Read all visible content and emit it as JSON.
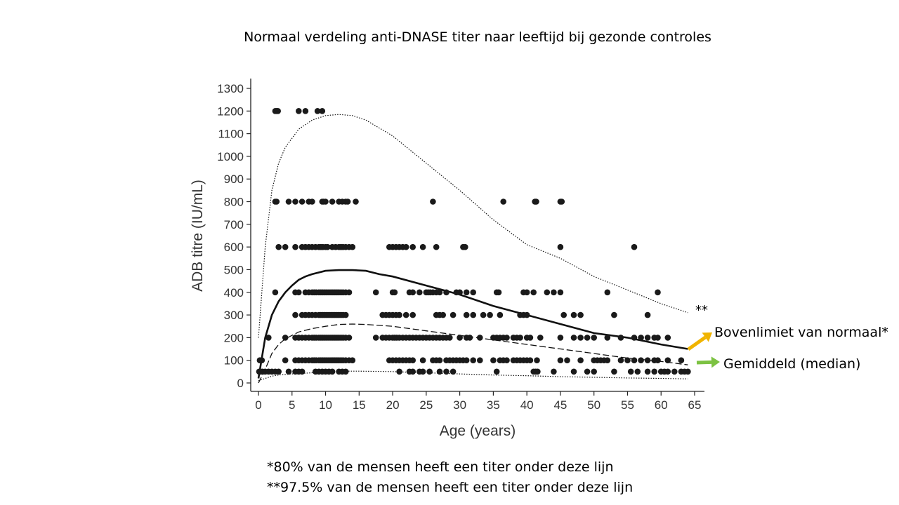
{
  "title": "Normaal verdeling anti-DNASE titer naar leeftijd bij gezonde controles",
  "notes": {
    "p80": "*80% van de mensen heeft een titer onder deze lijn",
    "p975": "**97.5% van de mensen heeft een titer onder deze lijn"
  },
  "labels": {
    "upper": "Bovenlimiet van normaal*",
    "median": "Gemiddeld (median)",
    "stars": "**"
  },
  "colors": {
    "upper_arrow": "#f0b400",
    "median_arrow": "#7cc242",
    "points": "#1a1a1a"
  },
  "chart_data": {
    "type": "scatter",
    "xlabel": "Age (years)",
    "ylabel": "ADB titre (IU/mL)",
    "xlim": [
      0,
      65
    ],
    "ylim": [
      0,
      1300
    ],
    "x_ticks": [
      "0",
      "5",
      "10",
      "15",
      "20",
      "25",
      "30",
      "35",
      "40",
      "45",
      "50",
      "55",
      "60",
      "65"
    ],
    "y_ticks": [
      "0",
      "100",
      "200",
      "300",
      "400",
      "500",
      "600",
      "700",
      "800",
      "900",
      "1000",
      "1100",
      "1200",
      "1300"
    ],
    "grid": false,
    "points": [
      {
        "y": 1200,
        "x": [
          2.5,
          2.7,
          2.9,
          6,
          7,
          8.8,
          9.5
        ]
      },
      {
        "y": 800,
        "x": [
          2.5,
          2.7,
          4.5,
          5.5,
          6.5,
          7.5,
          8,
          9.5,
          9.7,
          10,
          11,
          12,
          12.5,
          13,
          13.3,
          14.5,
          26,
          36.5,
          41.2,
          41.4,
          45,
          45.2
        ]
      },
      {
        "y": 600,
        "x": [
          3,
          4,
          5.5,
          6.5,
          7,
          7.5,
          8,
          8.5,
          9,
          9.3,
          9.6,
          10,
          10.3,
          11,
          11.5,
          12,
          12.3,
          12.6,
          13,
          13.5,
          14,
          19.5,
          20,
          20.5,
          21,
          21.5,
          22,
          23,
          24.5,
          26.5,
          30.5,
          30.8,
          45,
          56
        ]
      },
      {
        "y": 400,
        "x": [
          2.5,
          5.5,
          6,
          7,
          7.5,
          8,
          8.3,
          8.6,
          9,
          9.3,
          9.6,
          9.9,
          10.2,
          10.5,
          10.8,
          11.1,
          11.4,
          11.7,
          12,
          12.3,
          12.6,
          13,
          13.5,
          17.5,
          20,
          20.3,
          22.5,
          23,
          24,
          25,
          25.3,
          25.6,
          26,
          26.5,
          27,
          28,
          29.5,
          30,
          31,
          32,
          35.5,
          35.8,
          39.5,
          40,
          41,
          43,
          44,
          45,
          52,
          59.5
        ]
      },
      {
        "y": 300,
        "x": [
          5.5,
          6.5,
          7,
          7.5,
          8,
          8.5,
          9,
          9.3,
          9.6,
          9.9,
          10.2,
          10.5,
          10.8,
          11.1,
          11.4,
          11.7,
          12,
          12.3,
          12.6,
          13,
          18.5,
          19,
          19.5,
          20,
          20.5,
          21,
          22,
          23,
          26.5,
          27,
          27.5,
          29,
          31,
          32,
          33.5,
          34.5,
          36,
          39,
          39.5,
          40,
          45.5,
          47,
          48,
          53,
          58
        ]
      },
      {
        "y": 200,
        "x": [
          1.5,
          4,
          5.5,
          6,
          6.5,
          7,
          7.5,
          8,
          8.3,
          8.6,
          9,
          9.3,
          9.6,
          9.9,
          10.2,
          10.5,
          10.8,
          11.1,
          11.4,
          11.7,
          12,
          12.3,
          12.6,
          13,
          13.5,
          17.5,
          18.5,
          19,
          19.5,
          20,
          20.3,
          20.6,
          21,
          21.5,
          22,
          22.5,
          23,
          23.5,
          24,
          24.5,
          25,
          25.5,
          26,
          26.5,
          27,
          27.5,
          28,
          28.5,
          30,
          31,
          31.5,
          33,
          35,
          35.5,
          36,
          36.5,
          37,
          38,
          38.5,
          39,
          40,
          40.5,
          42,
          45,
          47,
          48,
          49,
          50,
          52,
          54,
          56,
          57,
          58,
          59,
          59.5,
          61
        ]
      },
      {
        "y": 100,
        "x": [
          0.2,
          0.5,
          4,
          5.5,
          6,
          6.5,
          7,
          7.5,
          8,
          8.3,
          8.6,
          9,
          9.3,
          9.6,
          9.9,
          10.2,
          10.5,
          10.8,
          11.1,
          11.4,
          11.7,
          12,
          12.3,
          12.6,
          13,
          13.5,
          14,
          19.5,
          20,
          20.5,
          21,
          21.5,
          22,
          22.5,
          23,
          24.5,
          26,
          26.5,
          27,
          28,
          28.5,
          29,
          29.5,
          30,
          30.5,
          31,
          32,
          33,
          35,
          36,
          36.5,
          37,
          38,
          38.5,
          39,
          39.5,
          40,
          40.5,
          41.5,
          45,
          46,
          48,
          50,
          50.5,
          51,
          51.5,
          52,
          54,
          55,
          56,
          57,
          58,
          59,
          59.5,
          61,
          63
        ]
      },
      {
        "y": 50,
        "x": [
          0.1,
          0.3,
          0.6,
          1,
          1.5,
          2,
          2.5,
          3,
          4.5,
          5.5,
          6,
          6.5,
          8.5,
          9,
          9.5,
          10,
          10.5,
          11,
          12,
          12.5,
          13,
          21,
          22.5,
          23,
          24,
          24.5,
          25.5,
          27,
          28,
          29,
          35.5,
          41,
          41.3,
          41.6,
          44,
          47,
          49,
          50,
          53,
          55.5,
          56.5,
          58,
          59,
          60,
          60.5,
          61,
          62,
          63,
          63.5,
          64
        ]
      }
    ],
    "series": [
      {
        "style": "dotted",
        "x": [
          0,
          1,
          2,
          3,
          4,
          5,
          6,
          7,
          8,
          9,
          10,
          12,
          14,
          16,
          20,
          25,
          30,
          35,
          40,
          45,
          50,
          55,
          60,
          64
        ],
        "y": [
          200,
          600,
          850,
          970,
          1040,
          1080,
          1120,
          1140,
          1160,
          1170,
          1180,
          1185,
          1180,
          1160,
          1090,
          970,
          850,
          720,
          610,
          550,
          470,
          410,
          350,
          310
        ]
      },
      {
        "style": "solid",
        "x": [
          0,
          1,
          2,
          3,
          4,
          5,
          6,
          7,
          8,
          10,
          12,
          14,
          16,
          18,
          20,
          25,
          30,
          35,
          40,
          45,
          50,
          55,
          60,
          64
        ],
        "y": [
          20,
          200,
          300,
          360,
          400,
          430,
          455,
          470,
          480,
          495,
          498,
          498,
          495,
          480,
          470,
          430,
          390,
          340,
          300,
          260,
          220,
          200,
          170,
          150
        ]
      },
      {
        "style": "dashed",
        "x": [
          0,
          1,
          2,
          3,
          4,
          5,
          6,
          8,
          10,
          12,
          14,
          16,
          20,
          25,
          30,
          35,
          40,
          45,
          50,
          55,
          60,
          64
        ],
        "y": [
          0,
          60,
          130,
          170,
          195,
          210,
          225,
          240,
          250,
          258,
          260,
          258,
          250,
          230,
          210,
          190,
          170,
          150,
          130,
          110,
          95,
          80
        ]
      },
      {
        "style": "dotted",
        "x": [
          0,
          1,
          2,
          3,
          5,
          8,
          10,
          12,
          15,
          20,
          25,
          30,
          35,
          40,
          45,
          50,
          55,
          60,
          64
        ],
        "y": [
          10,
          20,
          30,
          35,
          40,
          45,
          50,
          52,
          52,
          50,
          45,
          40,
          35,
          32,
          28,
          25,
          22,
          20,
          18
        ]
      }
    ]
  }
}
